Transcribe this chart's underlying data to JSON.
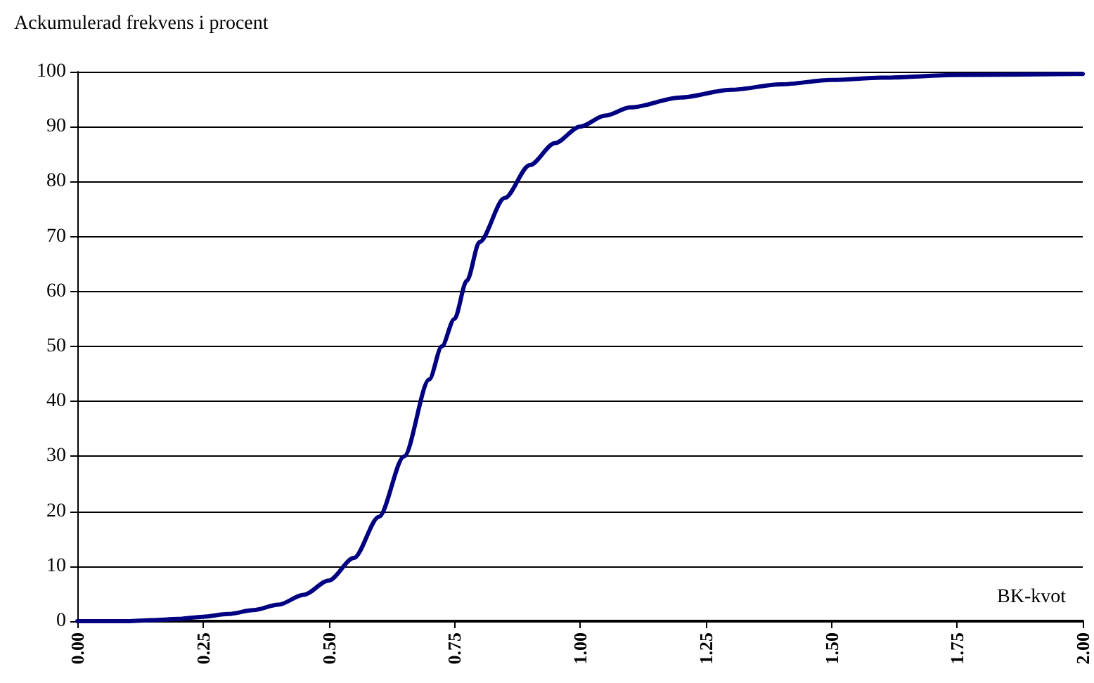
{
  "chart_data": {
    "type": "line",
    "ylabel": "Ackumulerad frekvens i procent",
    "xlabel": "BK-kvot",
    "x": [
      0,
      0.1,
      0.15,
      0.2,
      0.25,
      0.3,
      0.35,
      0.4,
      0.45,
      0.5,
      0.55,
      0.6,
      0.65,
      0.7,
      0.725,
      0.75,
      0.775,
      0.8,
      0.85,
      0.9,
      0.95,
      1.0,
      1.05,
      1.1,
      1.2,
      1.3,
      1.4,
      1.5,
      1.6,
      1.75,
      2.0
    ],
    "series": [
      {
        "color": "#000080",
        "values": [
          0,
          0,
          0.2,
          0.4,
          0.8,
          1.3,
          2,
          3,
          4.8,
          7.4,
          11.5,
          19,
          30,
          44,
          50,
          55,
          62,
          69,
          77,
          83,
          87,
          90,
          92,
          93.5,
          95.3,
          96.7,
          97.7,
          98.5,
          98.9,
          99.4,
          99.6
        ]
      }
    ],
    "xlim": [
      0,
      2
    ],
    "xticks": [
      {
        "value": 0,
        "label": "0.00"
      },
      {
        "value": 0.25,
        "label": "0.25"
      },
      {
        "value": 0.5,
        "label": "0.50"
      },
      {
        "value": 0.75,
        "label": "0.75"
      },
      {
        "value": 1,
        "label": "1.00"
      },
      {
        "value": 1.25,
        "label": "1.25"
      },
      {
        "value": 1.5,
        "label": "1.50"
      },
      {
        "value": 1.75,
        "label": "1.75"
      },
      {
        "value": 2,
        "label": "2.00"
      }
    ],
    "ylim": [
      0,
      100
    ],
    "yticks": [
      0,
      10,
      20,
      30,
      40,
      50,
      60,
      70,
      80,
      90,
      100
    ],
    "grid": "y",
    "marker": "none",
    "line_style": "solid"
  }
}
